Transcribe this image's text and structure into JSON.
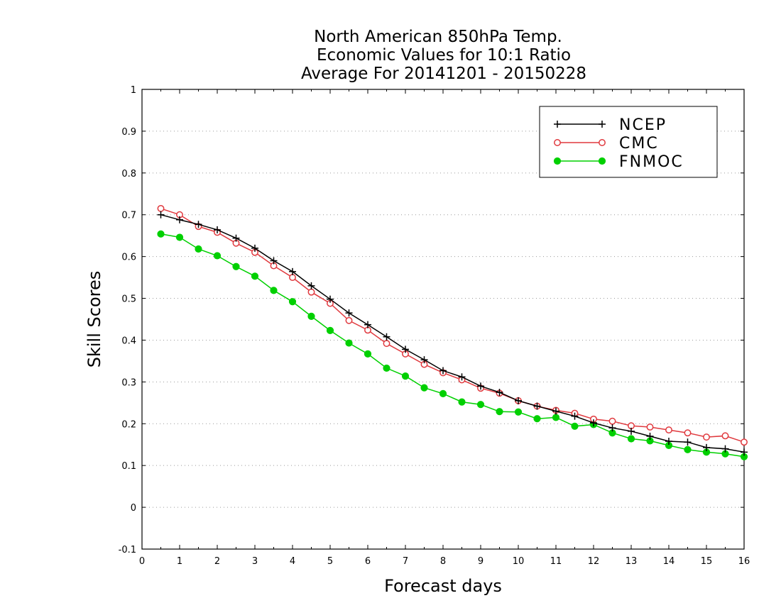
{
  "chart_data": {
    "type": "line",
    "title_lines": [
      "North American 850hPa Temp.",
      "Economic Values for 10:1 Ratio",
      "Average For 20141201 - 20150228"
    ],
    "xlabel": "Forecast days",
    "ylabel": "Skill Scores",
    "xlim": [
      0,
      16
    ],
    "ylim": [
      -0.1,
      1
    ],
    "x_ticks": [
      0,
      1,
      2,
      3,
      4,
      5,
      6,
      7,
      8,
      9,
      10,
      11,
      12,
      13,
      14,
      15,
      16
    ],
    "y_ticks": [
      -0.1,
      0,
      0.1,
      0.2,
      0.3,
      0.4,
      0.5,
      0.6,
      0.7,
      0.8,
      0.9,
      1
    ],
    "y_tick_labels": [
      "-0.1",
      "0",
      "0.1",
      "0.2",
      "0.3",
      "0.4",
      "0.5",
      "0.6",
      "0.7",
      "0.8",
      "0.9",
      "1"
    ],
    "grid": "horizontal dotted",
    "legend_position": "top-right",
    "x": [
      0.5,
      1,
      1.5,
      2,
      2.5,
      3,
      3.5,
      4,
      4.5,
      5,
      5.5,
      6,
      6.5,
      7,
      7.5,
      8,
      8.5,
      9,
      9.5,
      10,
      10.5,
      11,
      11.5,
      12,
      12.5,
      13,
      13.5,
      14,
      14.5,
      15,
      15.5,
      16
    ],
    "series": [
      {
        "name": "NCEP",
        "color": "#000000",
        "marker": "plus",
        "values": [
          0.7,
          0.688,
          0.677,
          0.664,
          0.644,
          0.62,
          0.59,
          0.564,
          0.53,
          0.498,
          0.465,
          0.437,
          0.408,
          0.378,
          0.353,
          0.327,
          0.312,
          0.29,
          0.275,
          0.255,
          0.242,
          0.23,
          0.218,
          0.202,
          0.19,
          0.182,
          0.17,
          0.158,
          0.156,
          0.143,
          0.14,
          0.132
        ]
      },
      {
        "name": "CMC",
        "color": "#e0393e",
        "marker": "open-circle",
        "values": [
          0.715,
          0.7,
          0.672,
          0.658,
          0.632,
          0.61,
          0.578,
          0.55,
          0.515,
          0.488,
          0.447,
          0.424,
          0.392,
          0.367,
          0.342,
          0.322,
          0.305,
          0.285,
          0.273,
          0.255,
          0.242,
          0.232,
          0.225,
          0.211,
          0.206,
          0.195,
          0.192,
          0.185,
          0.178,
          0.168,
          0.171,
          0.156
        ]
      },
      {
        "name": "FNMOC",
        "color": "#00d000",
        "marker": "filled-circle",
        "values": [
          0.654,
          0.646,
          0.618,
          0.602,
          0.576,
          0.553,
          0.519,
          0.492,
          0.457,
          0.423,
          0.393,
          0.367,
          0.333,
          0.314,
          0.286,
          0.272,
          0.252,
          0.246,
          0.229,
          0.228,
          0.212,
          0.215,
          0.194,
          0.198,
          0.178,
          0.164,
          0.159,
          0.148,
          0.138,
          0.132,
          0.128,
          0.121
        ]
      }
    ]
  }
}
